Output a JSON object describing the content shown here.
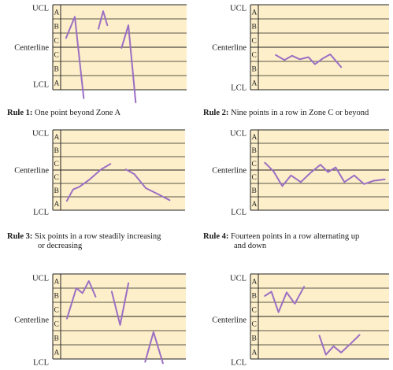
{
  "labels": {
    "ucl": "UCL",
    "center": "Centerline",
    "lcl": "LCL"
  },
  "zones": [
    "A",
    "B",
    "C",
    "C",
    "B",
    "A"
  ],
  "colors": {
    "zone_fill": "#fdefc9",
    "line": "#9b6fc4",
    "frame": "#222222"
  },
  "panels": [
    {
      "rule": "Rule 1:",
      "text": "One point beyond Zone A",
      "line2": "",
      "segments": [
        [
          [
            0.52,
            2.35
          ],
          [
            1.35,
            0.85
          ],
          [
            2.2,
            6.6
          ]
        ],
        [
          [
            3.6,
            1.7
          ],
          [
            4.05,
            0.45
          ],
          [
            4.45,
            1.45
          ]
        ],
        [
          [
            5.8,
            3.05
          ],
          [
            6.45,
            1.45
          ],
          [
            7.15,
            6.9
          ]
        ]
      ]
    },
    {
      "rule": "Rule 2:",
      "text": "Nine points in a row in Zone C or beyond",
      "line2": "",
      "segments": [
        [
          [
            1.6,
            3.55
          ],
          [
            2.4,
            3.9
          ],
          [
            3.1,
            3.6
          ],
          [
            3.8,
            3.85
          ],
          [
            4.6,
            3.7
          ],
          [
            5.2,
            4.2
          ],
          [
            5.9,
            3.8
          ],
          [
            6.6,
            3.5
          ],
          [
            7.6,
            4.4
          ]
        ]
      ]
    },
    {
      "rule": "Rule 3:",
      "text": "Six points in a row steadily increasing",
      "line2": "or decreasing",
      "segments": [
        [
          [
            0.6,
            5.3
          ],
          [
            1.2,
            4.45
          ],
          [
            1.8,
            4.25
          ],
          [
            2.8,
            3.7
          ],
          [
            3.9,
            2.95
          ],
          [
            4.8,
            2.55
          ]
        ],
        [
          [
            6.3,
            2.95
          ],
          [
            7.1,
            3.3
          ],
          [
            8.2,
            4.35
          ],
          [
            9.5,
            4.85
          ],
          [
            10.5,
            5.25
          ]
        ]
      ]
    },
    {
      "rule": "Rule 4:",
      "text": "Fourteen points in a row alternating up",
      "line2": "and down",
      "segments": [
        [
          [
            0.6,
            2.45
          ],
          [
            1.4,
            3.1
          ],
          [
            2.2,
            4.2
          ],
          [
            3.0,
            3.4
          ],
          [
            3.9,
            3.9
          ],
          [
            4.8,
            3.2
          ],
          [
            5.7,
            2.6
          ],
          [
            6.4,
            3.15
          ],
          [
            7.1,
            2.8
          ],
          [
            7.9,
            3.9
          ],
          [
            8.8,
            3.4
          ],
          [
            9.7,
            4.05
          ],
          [
            10.6,
            3.8
          ],
          [
            11.6,
            3.7
          ]
        ]
      ]
    },
    {
      "rule": "",
      "text": "",
      "line2": "",
      "segments": [
        [
          [
            0.6,
            3.15
          ],
          [
            1.5,
            1.0
          ],
          [
            2.1,
            1.35
          ],
          [
            2.7,
            0.5
          ],
          [
            3.35,
            1.6
          ]
        ],
        [
          [
            4.9,
            1.25
          ],
          [
            5.7,
            3.6
          ],
          [
            6.5,
            0.65
          ]
        ],
        [
          [
            8.1,
            6.2
          ],
          [
            8.9,
            4.1
          ],
          [
            9.8,
            6.3
          ]
        ]
      ]
    },
    {
      "rule": "",
      "text": "",
      "line2": "",
      "segments": [
        [
          [
            0.6,
            1.55
          ],
          [
            1.2,
            1.25
          ],
          [
            1.85,
            2.7
          ],
          [
            2.6,
            1.3
          ],
          [
            3.35,
            2.1
          ],
          [
            4.2,
            0.9
          ]
        ],
        [
          [
            5.6,
            4.35
          ],
          [
            6.2,
            5.7
          ],
          [
            6.9,
            5.1
          ],
          [
            7.6,
            5.55
          ],
          [
            8.5,
            4.9
          ],
          [
            9.3,
            4.3
          ]
        ]
      ]
    }
  ]
}
